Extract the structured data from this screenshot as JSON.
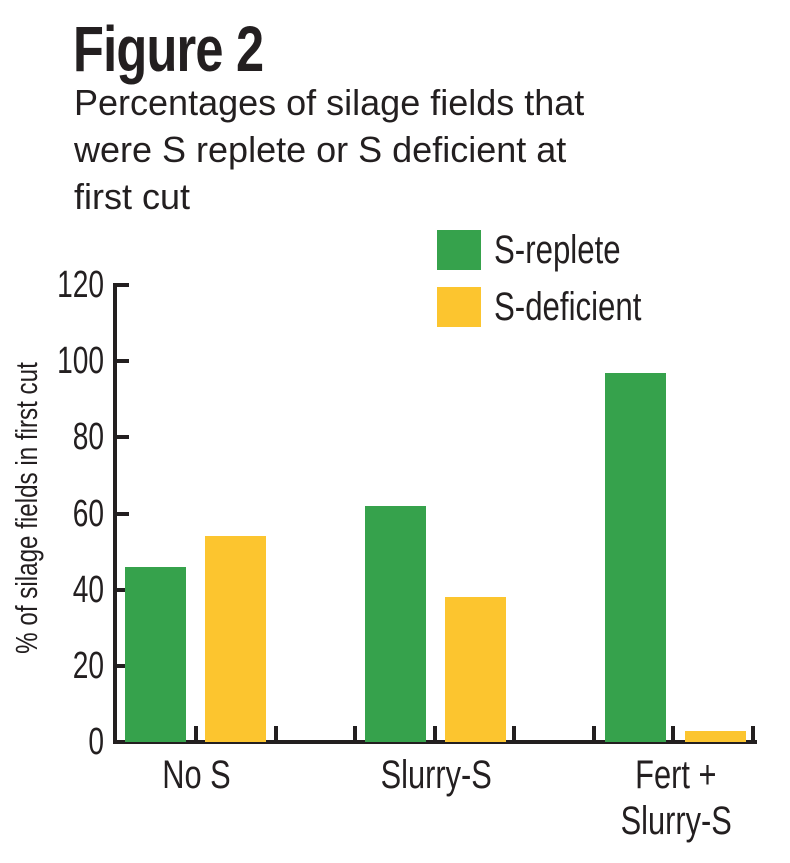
{
  "figure": {
    "label": "Figure 2",
    "subtitle": "Percentages of silage fields that were S replete or S deficient at first cut",
    "subtitle_lines": [
      "Percentages of silage fields that",
      "were S replete or S deficient at",
      "first cut"
    ]
  },
  "chart_data": {
    "type": "bar",
    "title": "Percentages of silage fields that were S replete or S deficient at first cut",
    "categories": [
      "No S",
      "Slurry-S",
      "Fert + Slurry-S"
    ],
    "category_label_lines": [
      [
        "No S"
      ],
      [
        "Slurry-S"
      ],
      [
        "Fert +",
        "Slurry-S"
      ]
    ],
    "series": [
      {
        "name": "S-replete",
        "color": "#36a24c",
        "values": [
          46,
          62,
          97
        ]
      },
      {
        "name": "S-deficient",
        "color": "#fcc52f",
        "values": [
          54,
          38,
          3
        ]
      }
    ],
    "xlabel": "",
    "ylabel": "% of silage fields in first cut",
    "ylim": [
      0,
      120
    ],
    "yticks": [
      0,
      20,
      40,
      60,
      80,
      100,
      120
    ],
    "grid": false,
    "legend_position": "top-right",
    "axis_color": "#231f20",
    "text_color": "#231f20",
    "background": "#ffffff"
  }
}
